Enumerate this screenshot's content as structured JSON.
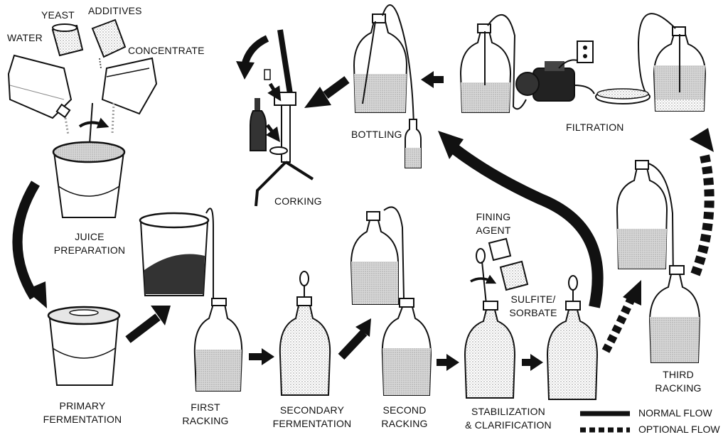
{
  "ingredients": {
    "water": "WATER",
    "yeast": "YEAST",
    "additives": "ADDITIVES",
    "concentrate": "CONCENTRATE"
  },
  "steps": {
    "juice_preparation": [
      "JUICE",
      "PREPARATION"
    ],
    "primary_fermentation": [
      "PRIMARY",
      "FERMENTATION"
    ],
    "first_racking": [
      "FIRST",
      "RACKING"
    ],
    "secondary_fermentation": [
      "SECONDARY",
      "FERMENTATION"
    ],
    "second_racking": [
      "SECOND",
      "RACKING"
    ],
    "stabilization": [
      "STABILIZATION",
      "& CLARIFICATION"
    ],
    "third_racking": [
      "THIRD",
      "RACKING"
    ],
    "filtration": "FILTRATION",
    "bottling": "BOTTLING",
    "corking": "CORKING"
  },
  "agents": {
    "fining": [
      "FINING",
      "AGENT"
    ],
    "sulfite": [
      "SULFITE/",
      "SORBATE"
    ]
  },
  "legend": {
    "normal": "NORMAL FLOW",
    "optional": "OPTIONAL FLOW"
  },
  "colors": {
    "ink": "#111111",
    "wine": "#2a2a2a",
    "liquid": "#cfcfcf",
    "glass": "#ffffff"
  }
}
